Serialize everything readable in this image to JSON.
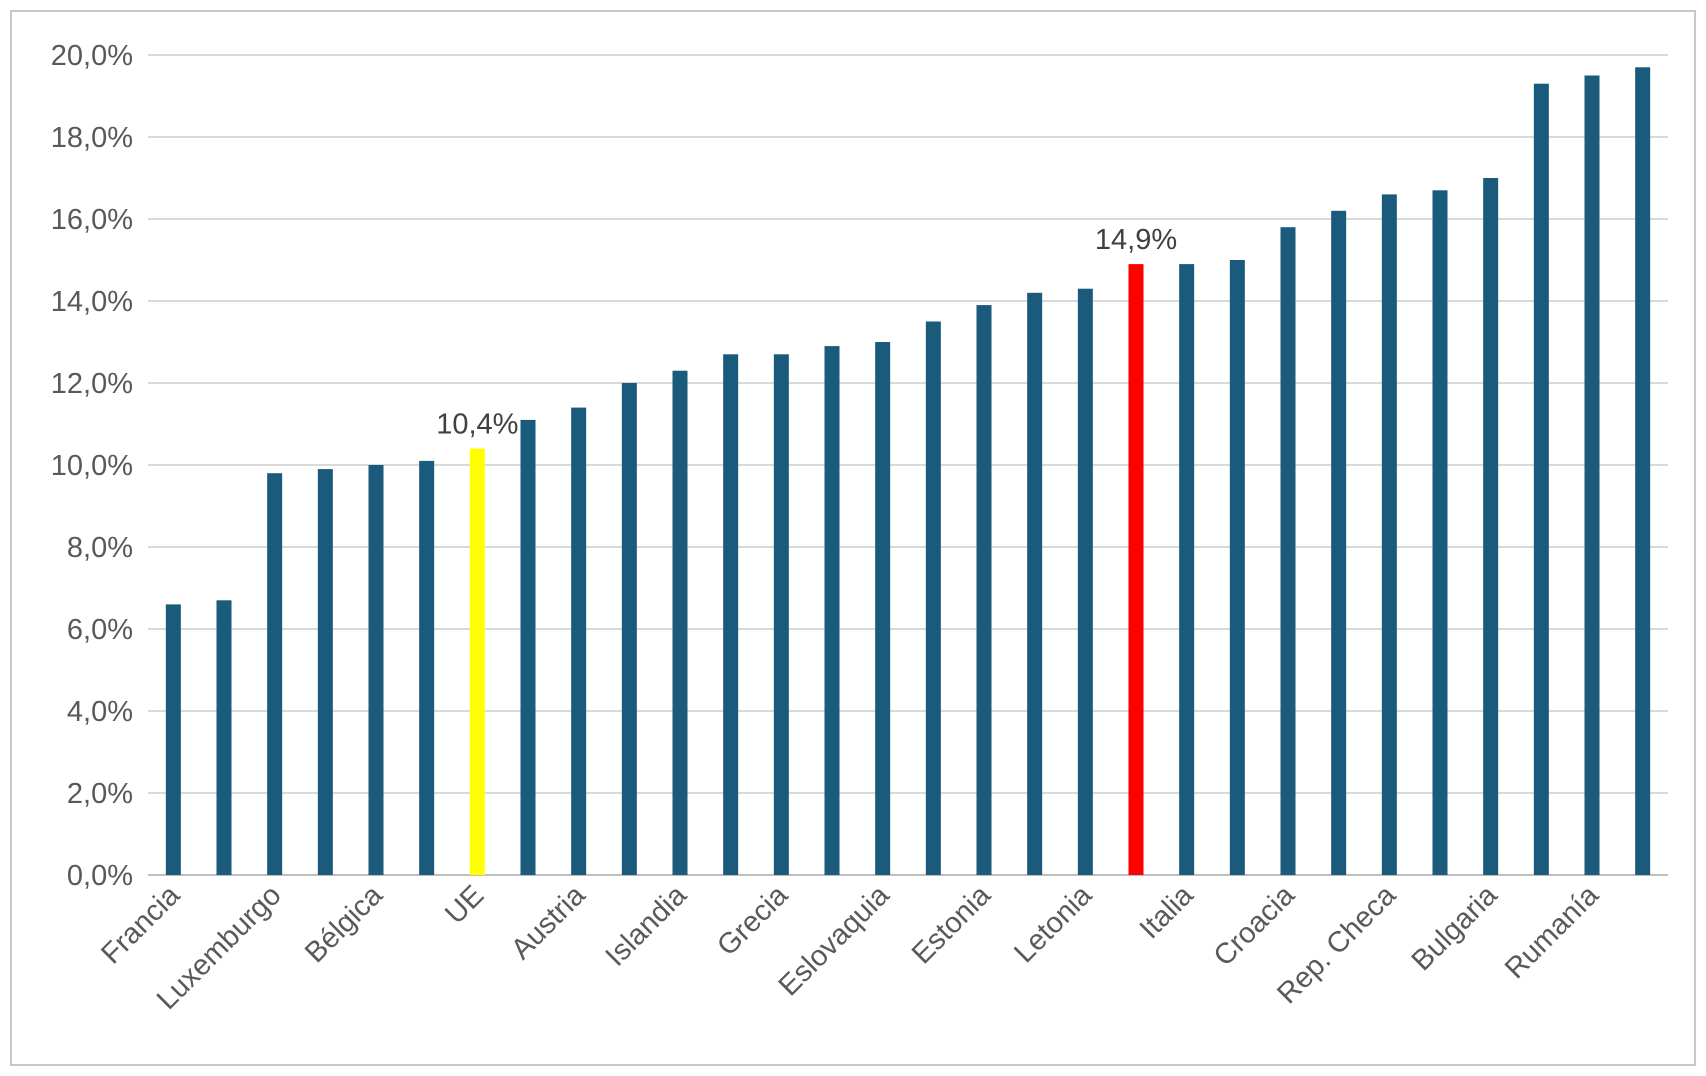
{
  "chart_data": {
    "type": "bar",
    "categories": [
      "Francia",
      "",
      "Luxemburgo",
      "",
      "Bélgica",
      "",
      "UE",
      "",
      "Austria",
      "",
      "Islandia",
      "",
      "Grecia",
      "",
      "Eslovaquia",
      "",
      "Estonia",
      "",
      "Letonia",
      "",
      "Italia",
      "",
      "Croacia",
      "",
      "Rep. Checa",
      "",
      "Bulgaria",
      "",
      "Rumanía",
      ""
    ],
    "values": [
      6.6,
      6.7,
      9.8,
      9.9,
      10.0,
      10.1,
      10.4,
      11.1,
      11.4,
      12.0,
      12.3,
      12.7,
      12.7,
      12.9,
      13.0,
      13.5,
      13.9,
      14.2,
      14.3,
      14.9,
      14.9,
      15.0,
      15.8,
      16.2,
      16.6,
      16.7,
      17.0,
      19.3,
      19.5,
      19.7
    ],
    "ylim": [
      0,
      20
    ],
    "yticks": [
      "0,0%",
      "2,0%",
      "4,0%",
      "6,0%",
      "8,0%",
      "10,0%",
      "12,0%",
      "14,0%",
      "16,0%",
      "18,0%",
      "20,0%"
    ],
    "data_labels": [
      {
        "index": 6,
        "text": "10,4%"
      },
      {
        "index": 19,
        "text": "14,9%"
      }
    ],
    "colors": {
      "default": "#1a5a7a",
      "highlight_ue": "#ffff00",
      "highlight_spain": "#ff0000",
      "grid": "#d9d9d9",
      "axis": "#bfbfbf"
    },
    "highlights": {
      "6": "highlight_ue",
      "19": "highlight_spain"
    },
    "grid": true,
    "legend": "none"
  }
}
